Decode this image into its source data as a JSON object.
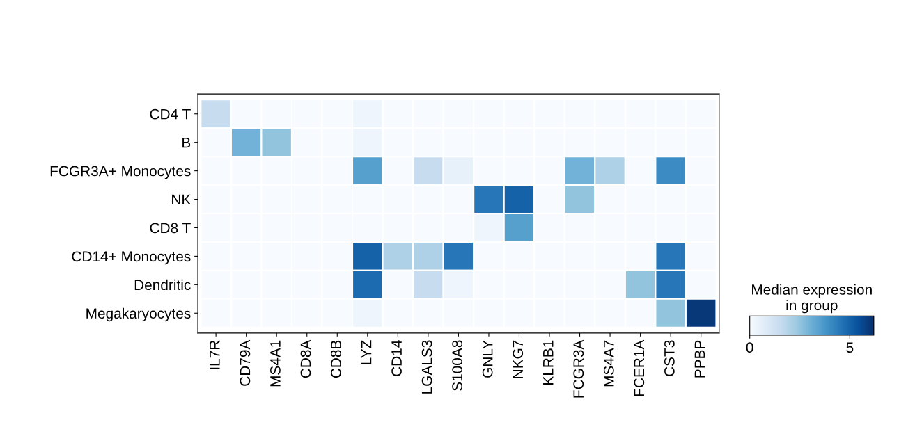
{
  "chart_data": {
    "type": "heatmap",
    "categories": [
      "IL7R",
      "CD79A",
      "MS4A1",
      "CD8A",
      "CD8B",
      "LYZ",
      "CD14",
      "LGALS3",
      "S100A8",
      "GNLY",
      "NKG7",
      "KLRB1",
      "FCGR3A",
      "MS4A7",
      "FCER1A",
      "CST3",
      "PPBP"
    ],
    "y_categories": [
      "CD4 T",
      "B",
      "FCGR3A+ Monocytes",
      "NK",
      "CD8 T",
      "CD14+ Monocytes",
      "Dendritic",
      "Megakaryocytes"
    ],
    "cells": [
      [
        1.5,
        0,
        0,
        0,
        0,
        0.3,
        0,
        0,
        0,
        0,
        0,
        0,
        0,
        0,
        0,
        0,
        0
      ],
      [
        0,
        3,
        2.5,
        0,
        0,
        0.3,
        0,
        0,
        0,
        0,
        0,
        0,
        0,
        0,
        0,
        0,
        0
      ],
      [
        0,
        0,
        0,
        0,
        0,
        3.5,
        0,
        1.5,
        0.5,
        0,
        0,
        0,
        3,
        2,
        0,
        4,
        0
      ],
      [
        0,
        0,
        0,
        0,
        0,
        0,
        0,
        0,
        0,
        4.5,
        5,
        0,
        2.5,
        0,
        0,
        0,
        0
      ],
      [
        0,
        0,
        0,
        0,
        0,
        0,
        0,
        0,
        0,
        0.3,
        3.5,
        0,
        0,
        0,
        0,
        0,
        0
      ],
      [
        0,
        0,
        0,
        0,
        0,
        5,
        2,
        2,
        4.5,
        0,
        0,
        0,
        0,
        0,
        0,
        4.5,
        0
      ],
      [
        0,
        0,
        0,
        0,
        0,
        4.8,
        0,
        1.5,
        0.3,
        0,
        0,
        0,
        0,
        0,
        2.5,
        4.5,
        0
      ],
      [
        0,
        0,
        0,
        0,
        0,
        0.3,
        0,
        0,
        0,
        0,
        0,
        0,
        0,
        0,
        0,
        2.5,
        6
      ]
    ],
    "clim": [
      0,
      6.2
    ],
    "cticks": [
      0,
      5
    ],
    "clabel": "Median expression\nin group",
    "grid": false
  }
}
